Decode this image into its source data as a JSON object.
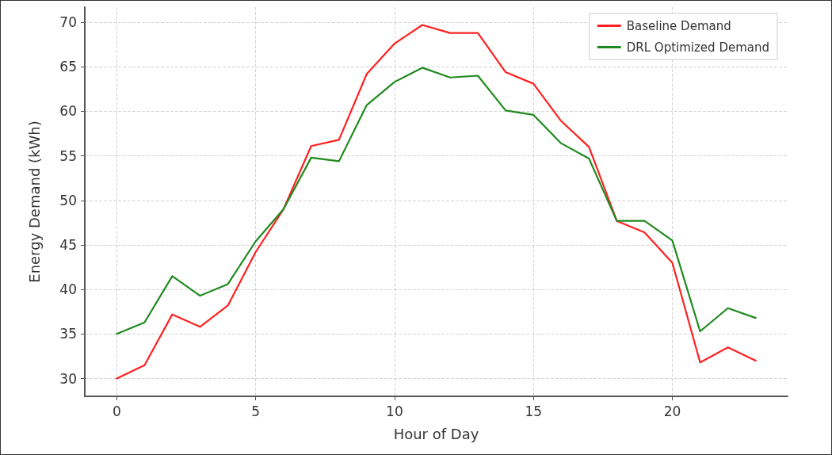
{
  "chart_data": {
    "type": "line",
    "xlabel": "Hour of Day",
    "ylabel": "Energy Demand (kWh)",
    "x": [
      0,
      1,
      2,
      3,
      4,
      5,
      6,
      7,
      8,
      9,
      10,
      11,
      12,
      13,
      14,
      15,
      16,
      17,
      18,
      19,
      20,
      21,
      22,
      23
    ],
    "series": [
      {
        "name": "Baseline Demand",
        "color": "#ff2020",
        "values": [
          30.0,
          31.5,
          37.2,
          35.8,
          38.2,
          44.2,
          49.0,
          56.1,
          56.8,
          64.2,
          67.6,
          69.7,
          68.8,
          68.8,
          64.4,
          63.1,
          58.9,
          56.0,
          47.7,
          46.4,
          43.0,
          31.8,
          33.5,
          32.0
        ]
      },
      {
        "name": "DRL Optimized Demand",
        "color": "#1f8a1f",
        "values": [
          35.0,
          36.3,
          41.5,
          39.3,
          40.6,
          45.4,
          49.0,
          54.8,
          54.4,
          60.7,
          63.3,
          64.9,
          63.8,
          64.0,
          60.1,
          59.6,
          56.4,
          54.7,
          47.7,
          47.7,
          45.5,
          35.3,
          37.9,
          36.8
        ]
      }
    ],
    "xlim": [
      -1.15,
      24.15
    ],
    "xticks": [
      0,
      5,
      10,
      15,
      20
    ],
    "ylim": [
      28.0,
      71.7
    ],
    "yticks": [
      30,
      35,
      40,
      45,
      50,
      55,
      60,
      65,
      70
    ],
    "grid": true,
    "legend": "top right",
    "marker": "none",
    "line_style": "solid"
  }
}
